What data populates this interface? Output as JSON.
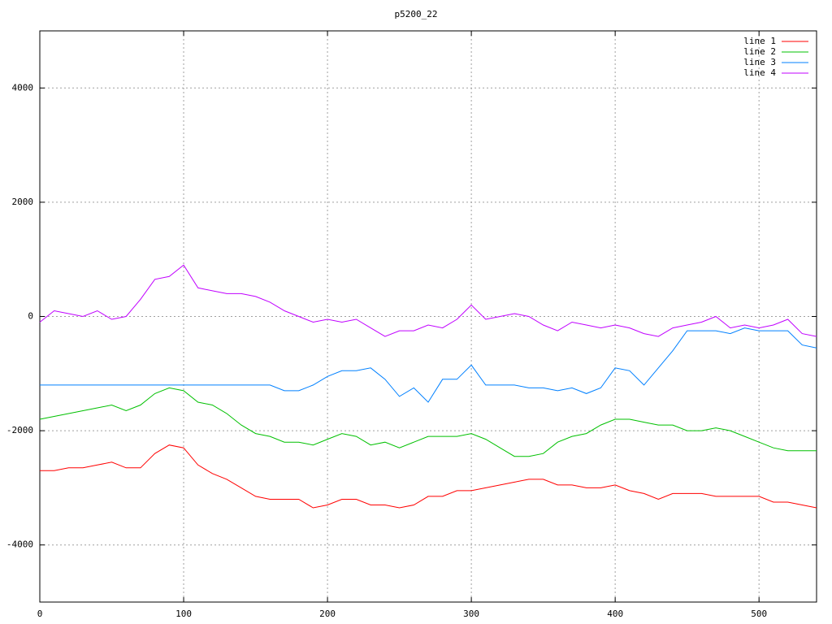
{
  "chart_data": {
    "type": "line",
    "title": "p5200_22",
    "x": [
      0,
      10,
      20,
      30,
      40,
      50,
      60,
      70,
      80,
      90,
      100,
      110,
      120,
      130,
      140,
      150,
      160,
      170,
      180,
      190,
      200,
      210,
      220,
      230,
      240,
      250,
      260,
      270,
      280,
      290,
      300,
      310,
      320,
      330,
      340,
      350,
      360,
      370,
      380,
      390,
      400,
      410,
      420,
      430,
      440,
      450,
      460,
      470,
      480,
      490,
      500,
      510,
      520,
      530,
      540
    ],
    "series": [
      {
        "name": "line 1",
        "color": "#ff0000",
        "values": [
          -2700,
          -2700,
          -2650,
          -2650,
          -2600,
          -2550,
          -2650,
          -2650,
          -2400,
          -2250,
          -2300,
          -2600,
          -2750,
          -2850,
          -3000,
          -3150,
          -3200,
          -3200,
          -3200,
          -3350,
          -3300,
          -3200,
          -3200,
          -3300,
          -3300,
          -3350,
          -3300,
          -3150,
          -3150,
          -3050,
          -3050,
          -3000,
          -2950,
          -2900,
          -2850,
          -2850,
          -2950,
          -2950,
          -3000,
          -3000,
          -2950,
          -3050,
          -3100,
          -3200,
          -3100,
          -3100,
          -3100,
          -3150,
          -3150,
          -3150,
          -3150,
          -3250,
          -3250,
          -3300,
          -3350
        ]
      },
      {
        "name": "line 2",
        "color": "#00c000",
        "values": [
          -1800,
          -1750,
          -1700,
          -1650,
          -1600,
          -1550,
          -1650,
          -1550,
          -1350,
          -1250,
          -1300,
          -1500,
          -1550,
          -1700,
          -1900,
          -2050,
          -2100,
          -2200,
          -2200,
          -2250,
          -2150,
          -2050,
          -2100,
          -2250,
          -2200,
          -2300,
          -2200,
          -2100,
          -2100,
          -2100,
          -2050,
          -2150,
          -2300,
          -2450,
          -2450,
          -2400,
          -2200,
          -2100,
          -2050,
          -1900,
          -1800,
          -1800,
          -1850,
          -1900,
          -1900,
          -2000,
          -2000,
          -1950,
          -2000,
          -2100,
          -2200,
          -2300,
          -2350,
          -2350,
          -2350
        ]
      },
      {
        "name": "line 3",
        "color": "#0080ff",
        "values": [
          -1200,
          -1200,
          -1200,
          -1200,
          -1200,
          -1200,
          -1200,
          -1200,
          -1200,
          -1200,
          -1200,
          -1200,
          -1200,
          -1200,
          -1200,
          -1200,
          -1200,
          -1300,
          -1300,
          -1200,
          -1050,
          -950,
          -950,
          -900,
          -1100,
          -1400,
          -1250,
          -1500,
          -1100,
          -1100,
          -850,
          -1200,
          -1200,
          -1200,
          -1250,
          -1250,
          -1300,
          -1250,
          -1350,
          -1250,
          -900,
          -950,
          -1200,
          -900,
          -600,
          -250,
          -250,
          -250,
          -300,
          -200,
          -250,
          -250,
          -250,
          -500,
          -550
        ]
      },
      {
        "name": "line 4",
        "color": "#c000ff",
        "values": [
          -100,
          100,
          50,
          0,
          100,
          -50,
          0,
          300,
          650,
          700,
          900,
          500,
          450,
          400,
          400,
          350,
          250,
          100,
          0,
          -100,
          -50,
          -100,
          -50,
          -200,
          -350,
          -250,
          -250,
          -150,
          -200,
          -50,
          200,
          -50,
          0,
          50,
          0,
          -150,
          -250,
          -100,
          -150,
          -200,
          -150,
          -200,
          -300,
          -350,
          -200,
          -150,
          -100,
          0,
          -200,
          -150,
          -200,
          -150,
          -50,
          -300,
          -350
        ]
      }
    ],
    "xlim": [
      0,
      540
    ],
    "xticks": [
      0,
      100,
      200,
      300,
      400,
      500
    ],
    "ylim": [
      -5000,
      5000
    ],
    "yticks": [
      -4000,
      -2000,
      0,
      2000,
      4000
    ],
    "grid": true,
    "legend": "top-right"
  }
}
